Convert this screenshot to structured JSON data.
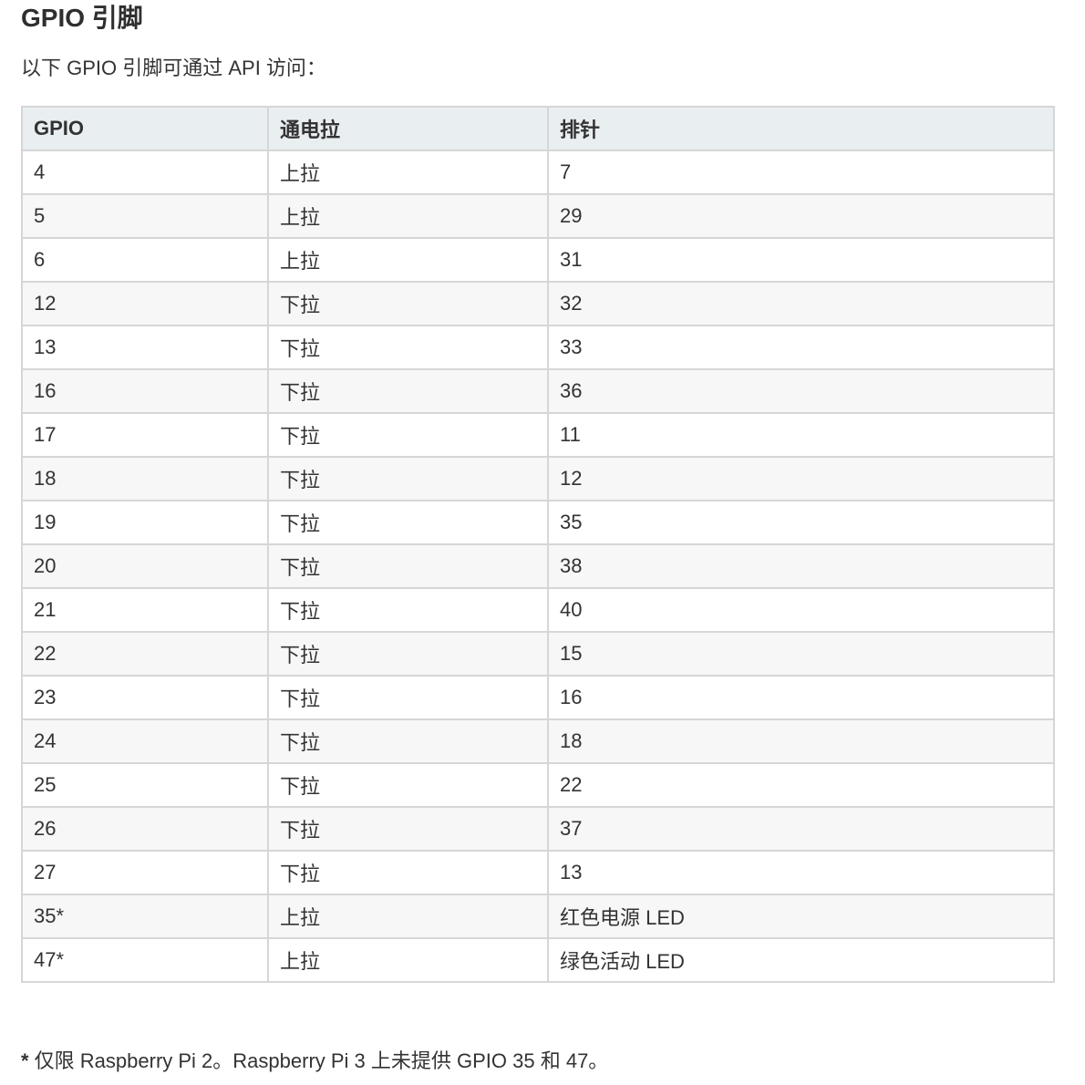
{
  "title": "GPIO 引脚",
  "intro": "以下 GPIO 引脚可通过 API 访问：",
  "table": {
    "headers": [
      "GPIO",
      "通电拉",
      "排针"
    ],
    "rows": [
      [
        "4",
        "上拉",
        "7"
      ],
      [
        "5",
        "上拉",
        "29"
      ],
      [
        "6",
        "上拉",
        "31"
      ],
      [
        "12",
        "下拉",
        "32"
      ],
      [
        "13",
        "下拉",
        "33"
      ],
      [
        "16",
        "下拉",
        "36"
      ],
      [
        "17",
        "下拉",
        "11"
      ],
      [
        "18",
        "下拉",
        "12"
      ],
      [
        "19",
        "下拉",
        "35"
      ],
      [
        "20",
        "下拉",
        "38"
      ],
      [
        "21",
        "下拉",
        "40"
      ],
      [
        "22",
        "下拉",
        "15"
      ],
      [
        "23",
        "下拉",
        "16"
      ],
      [
        "24",
        "下拉",
        "18"
      ],
      [
        "25",
        "下拉",
        "22"
      ],
      [
        "26",
        "下拉",
        "37"
      ],
      [
        "27",
        "下拉",
        "13"
      ],
      [
        "35*",
        "上拉",
        "红色电源 LED"
      ],
      [
        "47*",
        "上拉",
        "绿色活动 LED"
      ]
    ]
  },
  "footnote": {
    "mark": "*",
    "text": " 仅限 Raspberry Pi 2。Raspberry Pi 3 上未提供 GPIO 35 和 47。"
  },
  "colors": {
    "header_background": "#e9eef1",
    "border": "#d6d6d6",
    "zebra_background": "#f7f7f7",
    "text": "#333333"
  }
}
